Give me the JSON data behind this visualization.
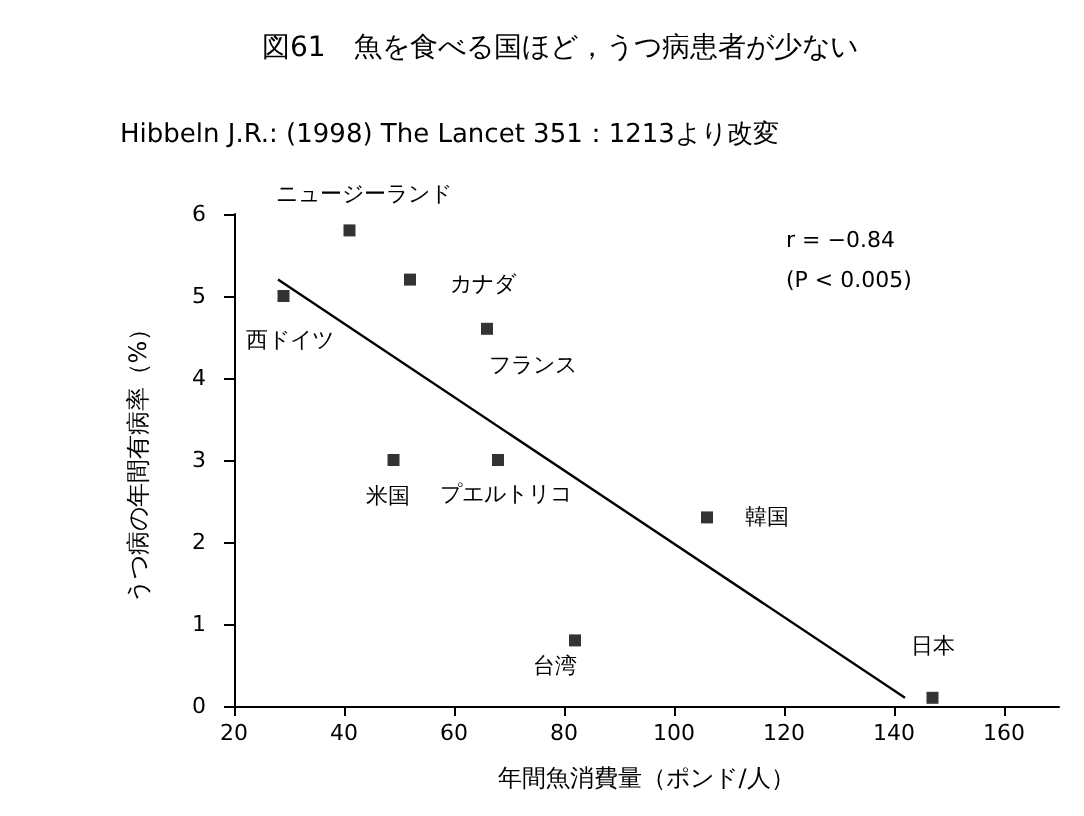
{
  "chart_data": {
    "type": "scatter",
    "title": "図61　魚を食べる国ほど，うつ病患者が少ない",
    "subtitle": "Hibbeln J.R.: (1998) The Lancet 351：1213より改変",
    "xlabel": "年間魚消費量（ポンド/人）",
    "ylabel": "うつ病の年間有病率（%）",
    "series": [
      {
        "color": "#000000",
        "x": [
          41,
          52,
          29,
          66,
          49,
          68,
          106,
          82,
          147
        ],
        "values": [
          5.8,
          5.2,
          5.0,
          4.6,
          3.0,
          3.0,
          2.3,
          0.8,
          0.1
        ]
      },
      {
        "type": "line",
        "color": "#000000",
        "x": [
          28,
          142
        ],
        "values": [
          5.2,
          0.1
        ],
        "marker": "none",
        "line_style": "solid"
      }
    ],
    "annotations": [
      {
        "text": "ニュージーランド",
        "x": 41,
        "y": 5.8
      },
      {
        "text": "カナダ",
        "x": 52,
        "y": 5.2
      },
      {
        "text": "西ドイツ",
        "x": 29,
        "y": 5.0
      },
      {
        "text": "フランス",
        "x": 66,
        "y": 4.6
      },
      {
        "text": "米国",
        "x": 49,
        "y": 3.0
      },
      {
        "text": "プエルトリコ",
        "x": 68,
        "y": 3.0
      },
      {
        "text": "韓国",
        "x": 106,
        "y": 2.3
      },
      {
        "text": "台湾",
        "x": 82,
        "y": 0.8
      },
      {
        "text": "日本",
        "x": 147,
        "y": 0.1
      },
      "r = −0.84",
      "(P < 0.005)"
    ],
    "xlim": [
      20,
      170
    ],
    "xticks": [
      20,
      40,
      60,
      80,
      100,
      120,
      140,
      160
    ],
    "ylim": [
      0,
      6
    ],
    "yticks": [
      0,
      1,
      2,
      3,
      4,
      5,
      6
    ],
    "grid": false,
    "marker": "square"
  }
}
